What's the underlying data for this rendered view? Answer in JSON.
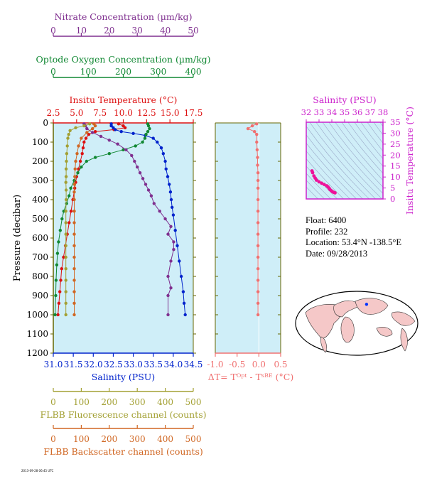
{
  "colors": {
    "plot_bg": "#cfeef8",
    "temperature": "#dd1111",
    "salinity": "#0022cc",
    "oxygen": "#118833",
    "nitrate": "#7f2f8f",
    "fluorescence": "#a3a033",
    "backscatter": "#d06622",
    "delta_t": "#f07070",
    "ts_points": "#ee1199",
    "ts_axis": "#cc22cc",
    "frame": "#666600"
  },
  "info": {
    "float": "Float:  6400",
    "profile": "Profile:  232",
    "location": "Location:  53.4°N  -138.5°E",
    "date": "Date:  09/28/2013"
  },
  "footer": "2013-09-28 06:45 UTC",
  "chart_data": [
    {
      "type": "line",
      "panel": "main",
      "ylabel": "Pressure (decibar)",
      "ylim": [
        1200,
        0
      ],
      "y_ticks": [
        0,
        100,
        200,
        300,
        400,
        500,
        600,
        700,
        800,
        900,
        1000,
        1100,
        1200
      ],
      "axes": {
        "nitrate": {
          "label": "Nitrate Concentration (µm/kg)",
          "range": [
            0,
            50
          ],
          "ticks": [
            "0",
            "10",
            "20",
            "30",
            "40",
            "50"
          ]
        },
        "oxygen": {
          "label": "Optode Oxygen Concentration (µm/kg)",
          "range": [
            0,
            400
          ],
          "ticks": [
            "0",
            "100",
            "200",
            "300",
            "400"
          ]
        },
        "temperature": {
          "label": "Insitu Temperature (°C)",
          "range": [
            2.5,
            17.5
          ],
          "ticks": [
            "2.5",
            "5.0",
            "7.5",
            "10.0",
            "12.5",
            "15.0",
            "17.5"
          ]
        },
        "salinity": {
          "label": "Salinity (PSU)",
          "range": [
            31.0,
            34.5
          ],
          "ticks": [
            "31.0",
            "31.5",
            "32.0",
            "32.5",
            "33.0",
            "33.5",
            "34.0",
            "34.5"
          ]
        },
        "fluorescence": {
          "label": "FLBB Fluorescence channel (counts)",
          "range": [
            0,
            500
          ],
          "ticks": [
            "0",
            "100",
            "200",
            "300",
            "400",
            "500"
          ]
        },
        "backscatter": {
          "label": "FLBB Backscatter channel (counts)",
          "range": [
            0,
            500
          ],
          "ticks": [
            "0",
            "100",
            "200",
            "300",
            "400",
            "500"
          ]
        }
      },
      "series": [
        {
          "axis": "temperature",
          "color_key": "temperature",
          "points": [
            [
              9.5,
              5
            ],
            [
              10.0,
              15
            ],
            [
              10.2,
              25
            ],
            [
              9.0,
              35
            ],
            [
              7.0,
              45
            ],
            [
              6.3,
              60
            ],
            [
              6.0,
              80
            ],
            [
              5.8,
              100
            ],
            [
              5.7,
              130
            ],
            [
              5.6,
              160
            ],
            [
              5.4,
              200
            ],
            [
              5.2,
              240
            ],
            [
              5.0,
              280
            ],
            [
              4.9,
              310
            ],
            [
              4.8,
              340
            ],
            [
              4.6,
              400
            ],
            [
              4.4,
              460
            ],
            [
              4.2,
              520
            ],
            [
              4.0,
              580
            ],
            [
              3.8,
              640
            ],
            [
              3.6,
              700
            ],
            [
              3.4,
              760
            ],
            [
              3.3,
              820
            ],
            [
              3.2,
              880
            ],
            [
              3.1,
              940
            ],
            [
              3.0,
              1000
            ]
          ]
        },
        {
          "axis": "salinity",
          "color_key": "salinity",
          "points": [
            [
              32.45,
              5
            ],
            [
              32.45,
              15
            ],
            [
              32.5,
              25
            ],
            [
              32.55,
              35
            ],
            [
              32.7,
              45
            ],
            [
              33.0,
              55
            ],
            [
              33.3,
              65
            ],
            [
              33.5,
              80
            ],
            [
              33.6,
              100
            ],
            [
              33.7,
              130
            ],
            [
              33.75,
              160
            ],
            [
              33.8,
              200
            ],
            [
              33.82,
              240
            ],
            [
              33.86,
              280
            ],
            [
              33.9,
              320
            ],
            [
              33.93,
              360
            ],
            [
              33.95,
              400
            ],
            [
              33.97,
              440
            ],
            [
              34.0,
              480
            ],
            [
              34.05,
              560
            ],
            [
              34.1,
              640
            ],
            [
              34.15,
              720
            ],
            [
              34.2,
              800
            ],
            [
              34.25,
              880
            ],
            [
              34.27,
              940
            ],
            [
              34.3,
              1000
            ]
          ]
        },
        {
          "axis": "oxygen",
          "color_key": "oxygen",
          "points": [
            [
              270,
              5
            ],
            [
              272,
              15
            ],
            [
              275,
              30
            ],
            [
              270,
              45
            ],
            [
              265,
              60
            ],
            [
              262,
              80
            ],
            [
              255,
              100
            ],
            [
              235,
              120
            ],
            [
              200,
              140
            ],
            [
              160,
              160
            ],
            [
              120,
              180
            ],
            [
              95,
              200
            ],
            [
              80,
              230
            ],
            [
              70,
              260
            ],
            [
              60,
              300
            ],
            [
              50,
              340
            ],
            [
              45,
              380
            ],
            [
              38,
              420
            ],
            [
              30,
              460
            ],
            [
              25,
              500
            ],
            [
              20,
              560
            ],
            [
              15,
              620
            ],
            [
              12,
              680
            ],
            [
              10,
              740
            ],
            [
              8,
              820
            ],
            [
              7,
              900
            ],
            [
              5,
              1000
            ]
          ]
        },
        {
          "axis": "nitrate",
          "color_key": "nitrate",
          "points": [
            [
              11,
              5
            ],
            [
              11.5,
              15
            ],
            [
              12,
              30
            ],
            [
              14,
              50
            ],
            [
              17,
              70
            ],
            [
              20,
              90
            ],
            [
              23,
              110
            ],
            [
              26,
              140
            ],
            [
              28,
              170
            ],
            [
              29,
              200
            ],
            [
              30,
              230
            ],
            [
              31,
              260
            ],
            [
              32,
              290
            ],
            [
              33,
              320
            ],
            [
              34,
              350
            ],
            [
              35,
              380
            ],
            [
              36,
              420
            ],
            [
              38,
              460
            ],
            [
              40,
              500
            ],
            [
              42,
              540
            ],
            [
              41,
              580
            ],
            [
              43,
              620
            ],
            [
              43,
              660
            ],
            [
              42,
              720
            ],
            [
              41,
              800
            ],
            [
              42,
              860
            ],
            [
              41,
              900
            ],
            [
              41,
              1000
            ]
          ]
        },
        {
          "axis": "fluorescence",
          "color_key": "fluorescence",
          "points": [
            [
              130,
              5
            ],
            [
              110,
              15
            ],
            [
              80,
              25
            ],
            [
              60,
              40
            ],
            [
              55,
              60
            ],
            [
              52,
              80
            ],
            [
              50,
              120
            ],
            [
              48,
              160
            ],
            [
              47,
              200
            ],
            [
              46,
              240
            ],
            [
              46,
              280
            ],
            [
              45,
              310
            ],
            [
              46,
              350
            ],
            [
              46,
              400
            ],
            [
              45,
              460
            ],
            [
              45,
              520
            ],
            [
              45,
              580
            ],
            [
              45,
              640
            ],
            [
              45,
              700
            ],
            [
              45,
              760
            ],
            [
              45,
              820
            ],
            [
              45,
              880
            ],
            [
              45,
              940
            ],
            [
              45,
              1000
            ]
          ]
        },
        {
          "axis": "backscatter",
          "color_key": "backscatter",
          "points": [
            [
              145,
              5
            ],
            [
              150,
              15
            ],
            [
              140,
              30
            ],
            [
              120,
              50
            ],
            [
              100,
              80
            ],
            [
              90,
              120
            ],
            [
              85,
              160
            ],
            [
              80,
              200
            ],
            [
              78,
              240
            ],
            [
              77,
              280
            ],
            [
              76,
              320
            ],
            [
              75,
              360
            ],
            [
              75,
              400
            ],
            [
              75,
              460
            ],
            [
              75,
              520
            ],
            [
              75,
              580
            ],
            [
              75,
              640
            ],
            [
              75,
              700
            ],
            [
              75,
              760
            ],
            [
              75,
              820
            ],
            [
              75,
              880
            ],
            [
              75,
              940
            ],
            [
              75,
              1000
            ]
          ]
        }
      ]
    },
    {
      "type": "line",
      "panel": "delta_t",
      "xlabel": "ΔT= Tᴼᵖᵗ - Tˢᴮᴱ (°C)",
      "xlim": [
        -1.0,
        0.5
      ],
      "x_ticks": [
        "-1.0",
        "-0.5",
        "0.0",
        "0.5"
      ],
      "series": [
        {
          "color_key": "delta_t",
          "points": [
            [
              -0.05,
              5
            ],
            [
              -0.15,
              15
            ],
            [
              -0.25,
              30
            ],
            [
              -0.1,
              45
            ],
            [
              -0.05,
              60
            ],
            [
              -0.05,
              100
            ],
            [
              -0.04,
              140
            ],
            [
              -0.03,
              180
            ],
            [
              -0.03,
              220
            ],
            [
              -0.02,
              260
            ],
            [
              -0.02,
              300
            ],
            [
              -0.02,
              340
            ],
            [
              -0.02,
              400
            ],
            [
              -0.02,
              460
            ],
            [
              -0.02,
              520
            ],
            [
              -0.02,
              580
            ],
            [
              -0.02,
              640
            ],
            [
              -0.02,
              700
            ],
            [
              -0.02,
              760
            ],
            [
              -0.02,
              820
            ],
            [
              -0.02,
              880
            ],
            [
              -0.02,
              940
            ],
            [
              -0.02,
              1000
            ]
          ]
        }
      ]
    },
    {
      "type": "scatter",
      "panel": "ts_diagram",
      "xlabel": "Salinity (PSU)",
      "ylabel": "Insitu Temperature (°C)",
      "xlim": [
        32,
        38
      ],
      "ylim": [
        0,
        35
      ],
      "x_ticks": [
        "32",
        "33",
        "34",
        "35",
        "36",
        "37",
        "38"
      ],
      "y_ticks": [
        "0",
        "5",
        "10",
        "15",
        "20",
        "25",
        "30",
        "35"
      ],
      "points": [
        [
          32.45,
          12.8
        ],
        [
          32.5,
          12.0
        ],
        [
          32.6,
          10.5
        ],
        [
          32.7,
          9.5
        ],
        [
          32.8,
          8.6
        ],
        [
          33.0,
          7.8
        ],
        [
          33.2,
          7.2
        ],
        [
          33.4,
          6.6
        ],
        [
          33.6,
          6.0
        ],
        [
          33.7,
          5.5
        ],
        [
          33.8,
          4.8
        ],
        [
          33.85,
          4.3
        ],
        [
          33.95,
          3.8
        ],
        [
          34.05,
          3.3
        ],
        [
          34.15,
          3.0
        ],
        [
          34.25,
          2.8
        ]
      ]
    },
    {
      "type": "map",
      "panel": "location_map",
      "marker": {
        "lat": 53.4,
        "lon": -138.5
      }
    }
  ]
}
